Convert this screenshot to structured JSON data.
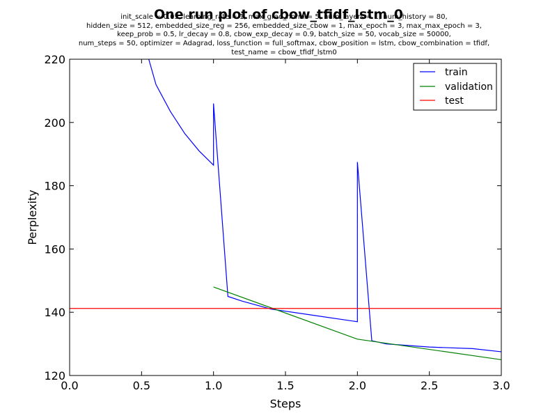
{
  "chart_data": {
    "type": "line",
    "title": "One run plot of cbow_tfidf_lstm_0",
    "subtitle_lines": [
      "init_scale = 0.05, learning_rate = 1, max_grad_norm = 5, num_layers = 1, num_history = 80,",
      "hidden_size = 512, embedded_size_reg = 256, embedded_size_cbow = 1, max_epoch = 3, max_max_epoch = 3,",
      "keep_prob = 0.5, lr_decay = 0.8, cbow_exp_decay = 0.9, batch_size = 50, vocab_size = 50000,",
      "num_steps = 50, optimizer = Adagrad, loss_function = full_softmax, cbow_position = lstm, cbow_combination = tfidf,",
      "test_name = cbow_tfidf_lstm0"
    ],
    "xlabel": "Steps",
    "ylabel": "Perplexity",
    "xlim": [
      0.0,
      3.0
    ],
    "ylim": [
      120,
      220
    ],
    "xticks": [
      "0.0",
      "0.5",
      "1.0",
      "1.5",
      "2.0",
      "2.5",
      "3.0"
    ],
    "yticks": [
      "120",
      "140",
      "160",
      "180",
      "200",
      "220"
    ],
    "grid": false,
    "legend_position": "top-right",
    "series": [
      {
        "name": "train",
        "color": "#0000ff",
        "x": [
          0.5,
          0.6,
          0.7,
          0.8,
          0.9,
          1.0,
          1.0,
          1.1,
          1.2,
          1.4,
          1.7,
          2.0,
          2.0,
          2.1,
          2.2,
          2.5,
          2.8,
          3.0
        ],
        "y": [
          228,
          212,
          203.5,
          196.5,
          191,
          186.5,
          206,
          145,
          143.5,
          141,
          139,
          137,
          187.5,
          131,
          130,
          129,
          128.5,
          127.5
        ]
      },
      {
        "name": "validation",
        "color": "#008000",
        "x": [
          1.0,
          2.0,
          3.0
        ],
        "y": [
          148,
          131.5,
          125
        ]
      },
      {
        "name": "test",
        "color": "#ff0000",
        "x": [
          0.0,
          3.0
        ],
        "y": [
          141.2,
          141.2
        ]
      }
    ]
  }
}
